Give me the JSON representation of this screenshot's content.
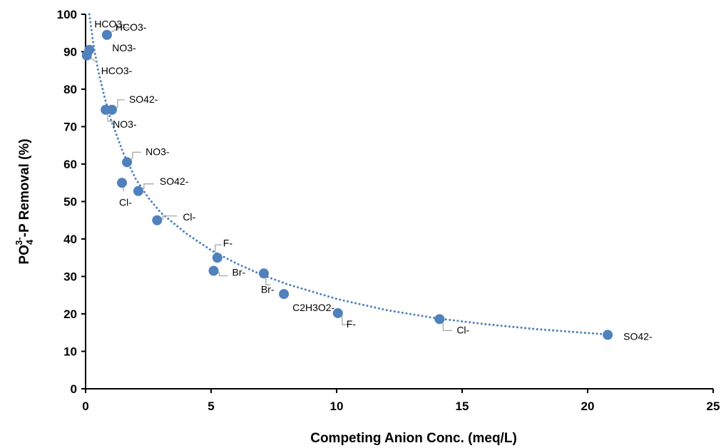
{
  "chart_data": {
    "type": "scatter",
    "xlabel": "Competing Anion Conc. (meq/L)",
    "ylabel_parts": {
      "main": "PO",
      "sub": "4",
      "sup": "3-",
      "rest": "-P Removal (%)"
    },
    "xlim": [
      0,
      25
    ],
    "ylim": [
      0,
      100
    ],
    "x_ticks": [
      0,
      5,
      10,
      15,
      20,
      25
    ],
    "y_ticks": [
      0,
      10,
      20,
      30,
      40,
      50,
      60,
      70,
      80,
      90,
      100
    ],
    "grid": false,
    "legend": "none",
    "marker_color": "#4F81BD",
    "trendline": {
      "style": "dotted",
      "color": "#4F81BD",
      "points": [
        [
          0.15,
          100
        ],
        [
          0.3,
          92.5
        ],
        [
          0.5,
          85.0
        ],
        [
          0.75,
          78.0
        ],
        [
          1.0,
          72.0
        ],
        [
          1.5,
          63.0
        ],
        [
          2.0,
          56.0
        ],
        [
          2.5,
          51.0
        ],
        [
          3.0,
          47.0
        ],
        [
          4.0,
          41.5
        ],
        [
          5.0,
          37.0
        ],
        [
          6.0,
          33.5
        ],
        [
          7.0,
          30.5
        ],
        [
          8.0,
          28.0
        ],
        [
          10.0,
          24.0
        ],
        [
          12.0,
          21.0
        ],
        [
          14.0,
          18.8
        ],
        [
          16.0,
          17.2
        ],
        [
          18.0,
          15.9
        ],
        [
          20.8,
          14.5
        ]
      ]
    },
    "points": [
      {
        "x": 0.85,
        "y": 94.5,
        "label": "HCO3-"
      },
      {
        "x": 0.15,
        "y": 90.5,
        "label": "NO3-"
      },
      {
        "x": 0.05,
        "y": 89.0,
        "label": "HCO3-"
      },
      {
        "x": 0.8,
        "y": 74.5,
        "label": "NO3-"
      },
      {
        "x": 1.05,
        "y": 74.5,
        "label": "SO42-"
      },
      {
        "x": 1.65,
        "y": 60.5,
        "label": "NO3-"
      },
      {
        "x": 1.45,
        "y": 55.0,
        "label": "Cl-"
      },
      {
        "x": 2.1,
        "y": 52.8,
        "label": "SO42-"
      },
      {
        "x": 2.85,
        "y": 45.0,
        "label": "Cl-"
      },
      {
        "x": 5.25,
        "y": 35.0,
        "label": "F-"
      },
      {
        "x": 5.1,
        "y": 31.5,
        "label": "Br-"
      },
      {
        "x": 7.1,
        "y": 30.8,
        "label": "Br-"
      },
      {
        "x": 7.9,
        "y": 25.3,
        "label": "C2H3O2-"
      },
      {
        "x": 10.05,
        "y": 20.2,
        "label": "F-"
      },
      {
        "x": 14.1,
        "y": 18.6,
        "label": "Cl-"
      },
      {
        "x": 20.8,
        "y": 14.4,
        "label": "SO42-"
      }
    ],
    "extra_labels": [
      {
        "text": "HCO3-"
      }
    ]
  }
}
